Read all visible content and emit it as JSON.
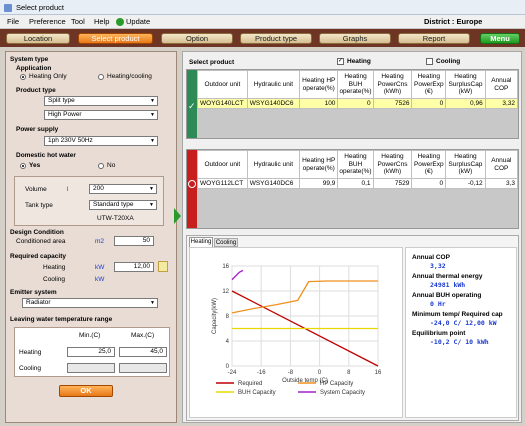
{
  "window": {
    "title": "Select product"
  },
  "menu": {
    "items": [
      "File",
      "Preference",
      "Tool",
      "Help",
      "Update"
    ],
    "district_label": "District : Europe"
  },
  "nav": {
    "buttons": [
      "Location",
      "Select product",
      "Option",
      "Product type",
      "Graphs",
      "Report",
      "Menu"
    ],
    "active": "Select product"
  },
  "left": {
    "system_type": "System type",
    "application": "Application",
    "heating_only": "Heating Only",
    "heating_cooling": "Heating/cooling",
    "product_type": "Product type",
    "product_type_value": "Split type",
    "product_subtype_value": "High Power",
    "power_supply": "Power supply",
    "power_supply_value": "1ph 230V 50Hz",
    "dhw": "Domestic hot water",
    "yes": "Yes",
    "no": "No",
    "volume_label": "Volume",
    "volume_unit": "l",
    "volume_value": "200",
    "tank_type_label": "Tank type",
    "tank_type_value": "Standard type",
    "tank_model": "UTW-T20XA",
    "design_condition": "Design Condition",
    "conditioned_area": "Conditioned area",
    "area_unit": "m2",
    "area_value": "50",
    "required_capacity": "Required capacity",
    "heating_label": "Heating",
    "heating_unit": "kW",
    "heating_value": "12,00",
    "cooling_label": "Cooling",
    "cooling_unit": "kW",
    "emitter_system": "Emitter system",
    "emitter_value": "Radiator",
    "lwt_range": "Leaving water temperature range",
    "min_header": "Min.(C)",
    "max_header": "Max.(C)",
    "lwt_heating_label": "Heating",
    "lwt_heating_min": "25,0",
    "lwt_heating_max": "45,0",
    "lwt_cooling_label": "Cooling",
    "ok": "OK"
  },
  "right": {
    "select_product": "Select product",
    "heating_check": "Heating",
    "cooling_check": "Cooling",
    "headers": [
      "Outdoor unit",
      "Hydraulic unit",
      "Heating HP operate(%)",
      "Heating BUH operate(%)",
      "Heating PowerCns (kWh)",
      "Heating PowerExp (€)",
      "Heating SurplusCap (kW)",
      "Annual COP"
    ],
    "row1": [
      "WOYG140LCT",
      "WSYG140DC6",
      "100",
      "0",
      "7526",
      "0",
      "0,96",
      "3,32"
    ],
    "row2": [
      "WOYG112LCT",
      "WSYG140DC6",
      "99,9",
      "0,1",
      "7529",
      "0",
      "-0,12",
      "3,3"
    ],
    "tabs": [
      "Heating",
      "Cooling"
    ],
    "stats": [
      {
        "label": "Annual COP",
        "value": "3,32"
      },
      {
        "label": "Annual thermal energy",
        "value": "24981 kWh"
      },
      {
        "label": "Annual BUH operating",
        "value": "0 Hr"
      },
      {
        "label": "Minimum temp/ Required cap",
        "value": "-24,0 C/ 12,00 kW"
      },
      {
        "label": "Equilibrium point",
        "value": "-10,2 C/ 10 kWh"
      }
    ]
  },
  "chart_data": {
    "type": "line",
    "xlabel": "Outside temp (C)",
    "ylabel": "Capacity(kW)",
    "xlim": [
      -24,
      16
    ],
    "ylim": [
      0,
      16
    ],
    "xticks": [
      -24,
      -16,
      -8,
      0,
      8,
      16
    ],
    "xtick_labels": [
      "-24",
      "-16",
      "-8",
      "0",
      "8",
      "16"
    ],
    "yticks": [
      0,
      4,
      8,
      12,
      16
    ],
    "ytick_labels": [
      "0",
      "4",
      "8",
      "12",
      "16"
    ],
    "series": [
      {
        "name": "Required",
        "color": "#c00000",
        "points": [
          [
            -24,
            12
          ],
          [
            16,
            0
          ]
        ]
      },
      {
        "name": "HP Capacity",
        "color": "#f0901e",
        "points": [
          [
            -24,
            8.5
          ],
          [
            -18,
            9.2
          ],
          [
            -12,
            9.8
          ],
          [
            -6,
            10.5
          ],
          [
            -3,
            13.5
          ],
          [
            2,
            13.6
          ],
          [
            16,
            13.6
          ]
        ]
      },
      {
        "name": "BUH Capacity",
        "color": "#e8d800",
        "points": [
          [
            -24,
            6
          ],
          [
            16,
            6
          ]
        ]
      },
      {
        "name": "System Capacity",
        "color": "#a020c8",
        "points": [
          [
            -24,
            13.8
          ],
          [
            -22,
            15
          ],
          [
            -21,
            15.3
          ]
        ]
      }
    ],
    "legend_position": "bottom"
  },
  "colors": {
    "nav_bg": "#6e3525",
    "active_btn": "#f08a28",
    "menu_btn": "#28a228",
    "selected_row": "#ffffa8",
    "ok_marker": "#2e8b57",
    "ng_marker": "#c81e1e"
  }
}
